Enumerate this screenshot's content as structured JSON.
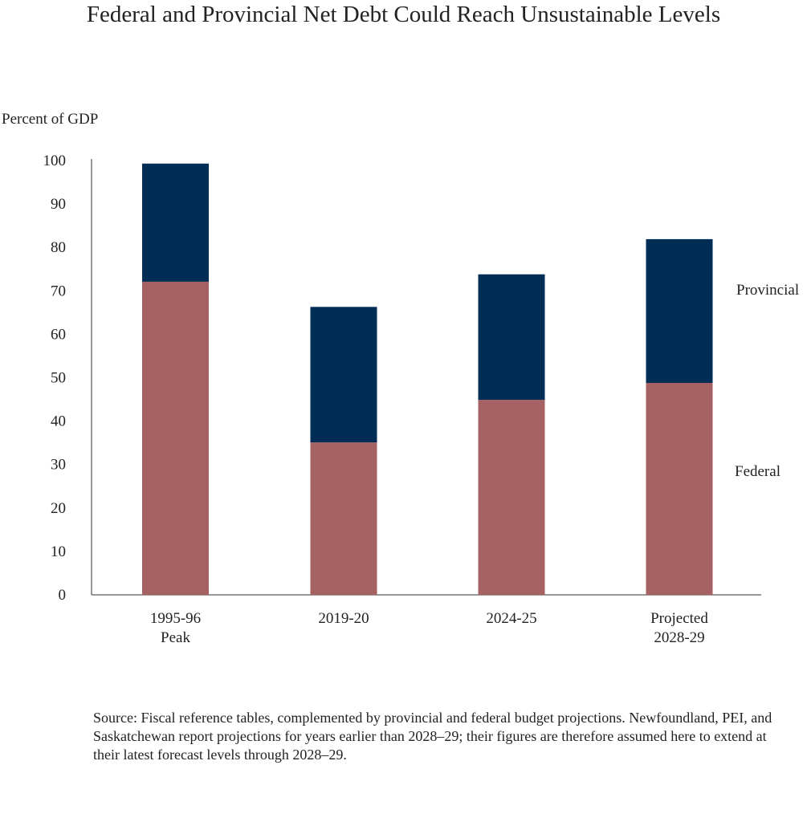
{
  "chart_data": {
    "type": "bar",
    "stacked": true,
    "title": "Federal and Provincial Net Debt Could Reach Unsustainable Levels",
    "ylabel": "Percent of GDP",
    "xlabel": "",
    "ylim": [
      0,
      100
    ],
    "yticks": [
      0,
      10,
      20,
      30,
      40,
      50,
      60,
      70,
      80,
      90,
      100
    ],
    "grid": false,
    "categories": [
      [
        "1995-96",
        "Peak"
      ],
      [
        "2019-20"
      ],
      [
        "2024-25"
      ],
      [
        "Projected",
        "2028-29"
      ]
    ],
    "series": [
      {
        "name": "Federal",
        "color": "#a66163",
        "values": [
          72.1,
          35.1,
          44.9,
          48.8
        ]
      },
      {
        "name": "Provincial",
        "color": "#002d56",
        "values": [
          27.2,
          31.2,
          28.9,
          33.1
        ]
      }
    ],
    "legend_placement": "right, inline labels"
  },
  "source": "Source: Fiscal reference tables, complemented by provincial and federal budget projections. Newfoundland, PEI, and Saskatchewan report projections for years earlier than 2028–29; their figures are therefore assumed here to extend at their latest forecast levels through 2028–29."
}
